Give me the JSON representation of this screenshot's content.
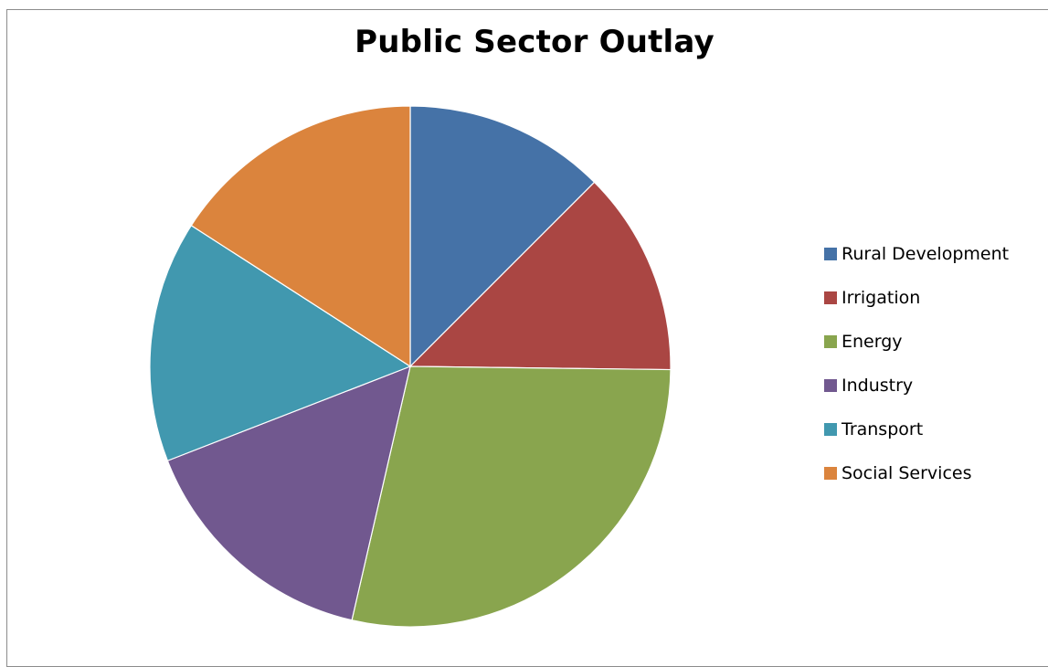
{
  "chart_data": {
    "type": "pie",
    "title": "Public Sector Outlay",
    "categories": [
      "Rural Development",
      "Irrigation",
      "Energy",
      "Industry",
      "Transport",
      "Social Services"
    ],
    "values": [
      12.5,
      12.7,
      28.4,
      15.5,
      15.0,
      15.9
    ],
    "colors": [
      "#4572A7",
      "#AA4643",
      "#89A54E",
      "#71588F",
      "#4198AF",
      "#DB843D"
    ],
    "legend_position": "right"
  }
}
